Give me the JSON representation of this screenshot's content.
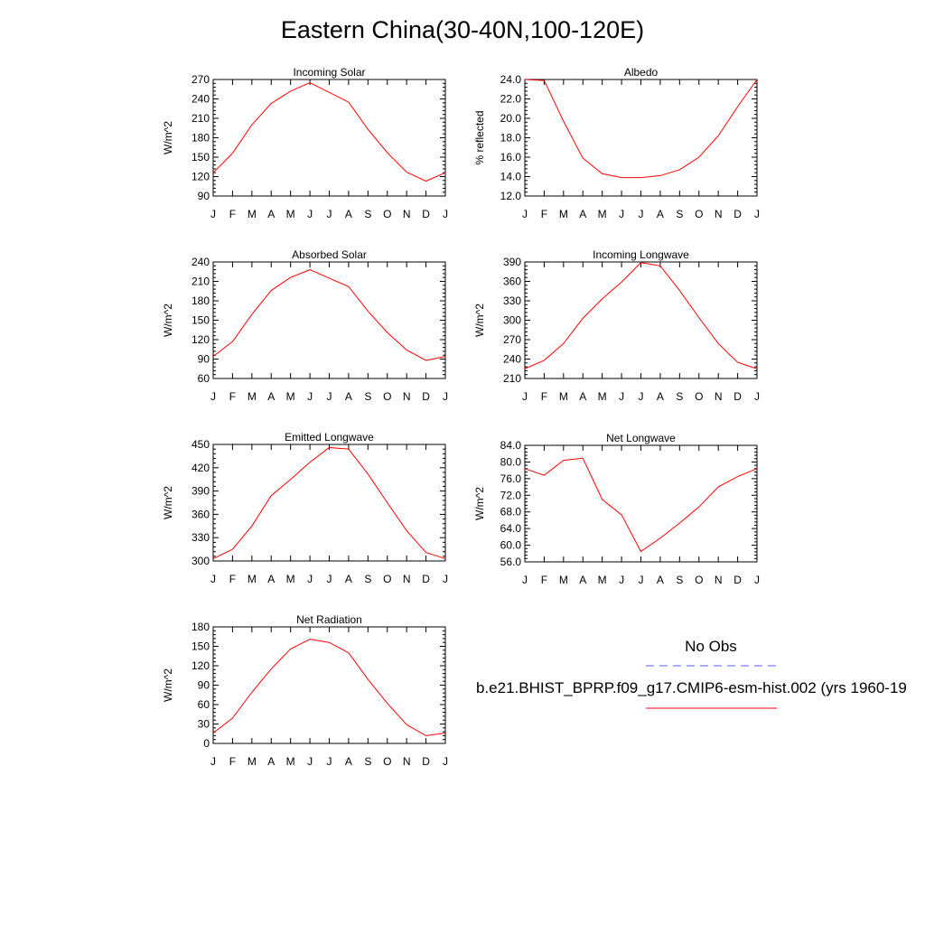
{
  "title": "Eastern China(30-40N,100-120E)",
  "legend": {
    "obs_label": "No Obs",
    "obs_color": "#5a5aff",
    "model_label": "b.e21.BHIST_BPRP.f09_g17.CMIP6-esm-hist.002 (yrs 1960-19",
    "model_color": "#ff0000"
  },
  "chart_data": [
    {
      "type": "line",
      "title": "Incoming Solar",
      "xlabel": "",
      "ylabel": "W/m^2",
      "categories": [
        "J",
        "F",
        "M",
        "A",
        "M",
        "J",
        "J",
        "A",
        "S",
        "O",
        "N",
        "D",
        "J"
      ],
      "ylim": [
        90,
        270
      ],
      "yticks": [
        90,
        120,
        150,
        180,
        210,
        240,
        270
      ],
      "ytick_labels": [
        "90",
        "120",
        "150",
        "180",
        "210",
        "240",
        "270"
      ],
      "series": [
        {
          "values": [
            126,
            156,
            200,
            233,
            252,
            265,
            250,
            235,
            193,
            157,
            127,
            113,
            126
          ]
        }
      ]
    },
    {
      "type": "line",
      "title": "Albedo",
      "xlabel": "",
      "ylabel": "% reflected",
      "categories": [
        "J",
        "F",
        "M",
        "A",
        "M",
        "J",
        "J",
        "A",
        "S",
        "O",
        "N",
        "D",
        "J"
      ],
      "ylim": [
        12,
        24
      ],
      "yticks": [
        12,
        14,
        16,
        18,
        20,
        22,
        24
      ],
      "ytick_labels": [
        "12.0",
        "14.0",
        "16.0",
        "18.0",
        "20.0",
        "22.0",
        "24.0"
      ],
      "series": [
        {
          "values": [
            24.0,
            23.9,
            19.7,
            15.9,
            14.3,
            13.9,
            13.9,
            14.1,
            14.7,
            16.0,
            18.2,
            21.2,
            24.0
          ]
        }
      ]
    },
    {
      "type": "line",
      "title": "Absorbed Solar",
      "xlabel": "",
      "ylabel": "W/m^2",
      "categories": [
        "J",
        "F",
        "M",
        "A",
        "M",
        "J",
        "J",
        "A",
        "S",
        "O",
        "N",
        "D",
        "J"
      ],
      "ylim": [
        60,
        240
      ],
      "yticks": [
        60,
        90,
        120,
        150,
        180,
        210,
        240
      ],
      "ytick_labels": [
        "60",
        "90",
        "120",
        "150",
        "180",
        "210",
        "240"
      ],
      "series": [
        {
          "values": [
            94,
            117,
            159,
            196,
            216,
            228,
            215,
            202,
            164,
            131,
            104,
            88,
            94
          ]
        }
      ]
    },
    {
      "type": "line",
      "title": "Incoming Longwave",
      "xlabel": "",
      "ylabel": "W/m^2",
      "categories": [
        "J",
        "F",
        "M",
        "A",
        "M",
        "J",
        "J",
        "A",
        "S",
        "O",
        "N",
        "D",
        "J"
      ],
      "ylim": [
        210,
        390
      ],
      "yticks": [
        210,
        240,
        270,
        300,
        330,
        360,
        390
      ],
      "ytick_labels": [
        "210",
        "240",
        "270",
        "300",
        "330",
        "360",
        "390"
      ],
      "series": [
        {
          "values": [
            225,
            238,
            264,
            303,
            333,
            359,
            389,
            384,
            346,
            304,
            264,
            235,
            225
          ]
        }
      ]
    },
    {
      "type": "line",
      "title": "Emitted Longwave",
      "xlabel": "",
      "ylabel": "W/m^2",
      "categories": [
        "J",
        "F",
        "M",
        "A",
        "M",
        "J",
        "J",
        "A",
        "S",
        "O",
        "N",
        "D",
        "J"
      ],
      "ylim": [
        300,
        450
      ],
      "yticks": [
        300,
        330,
        360,
        390,
        420,
        450
      ],
      "ytick_labels": [
        "300",
        "330",
        "360",
        "390",
        "420",
        "450"
      ],
      "series": [
        {
          "values": [
            303,
            315,
            345,
            384,
            405,
            427,
            446,
            444,
            412,
            375,
            339,
            311,
            303
          ]
        }
      ]
    },
    {
      "type": "line",
      "title": "Net Longwave",
      "xlabel": "",
      "ylabel": "W/m^2",
      "categories": [
        "J",
        "F",
        "M",
        "A",
        "M",
        "J",
        "J",
        "A",
        "S",
        "O",
        "N",
        "D",
        "J"
      ],
      "ylim": [
        56,
        84
      ],
      "yticks": [
        56,
        60,
        64,
        68,
        72,
        76,
        80,
        84
      ],
      "ytick_labels": [
        "56.0",
        "60.0",
        "64.0",
        "68.0",
        "72.0",
        "76.0",
        "80.0",
        "84.0"
      ],
      "series": [
        {
          "values": [
            78.4,
            76.8,
            80.4,
            80.9,
            71.0,
            67.3,
            58.5,
            61.7,
            65.3,
            69.2,
            74.0,
            76.5,
            78.4
          ]
        }
      ]
    },
    {
      "type": "line",
      "title": "Net Radiation",
      "xlabel": "",
      "ylabel": "W/m^2",
      "categories": [
        "J",
        "F",
        "M",
        "A",
        "M",
        "J",
        "J",
        "A",
        "S",
        "O",
        "N",
        "D",
        "J"
      ],
      "ylim": [
        0,
        180
      ],
      "yticks": [
        0,
        30,
        60,
        90,
        120,
        150,
        180
      ],
      "ytick_labels": [
        "0",
        "30",
        "60",
        "90",
        "120",
        "150",
        "180"
      ],
      "series": [
        {
          "values": [
            16,
            39,
            79,
            115,
            146,
            161,
            156,
            140,
            99,
            62,
            29,
            12,
            16
          ]
        }
      ]
    }
  ]
}
